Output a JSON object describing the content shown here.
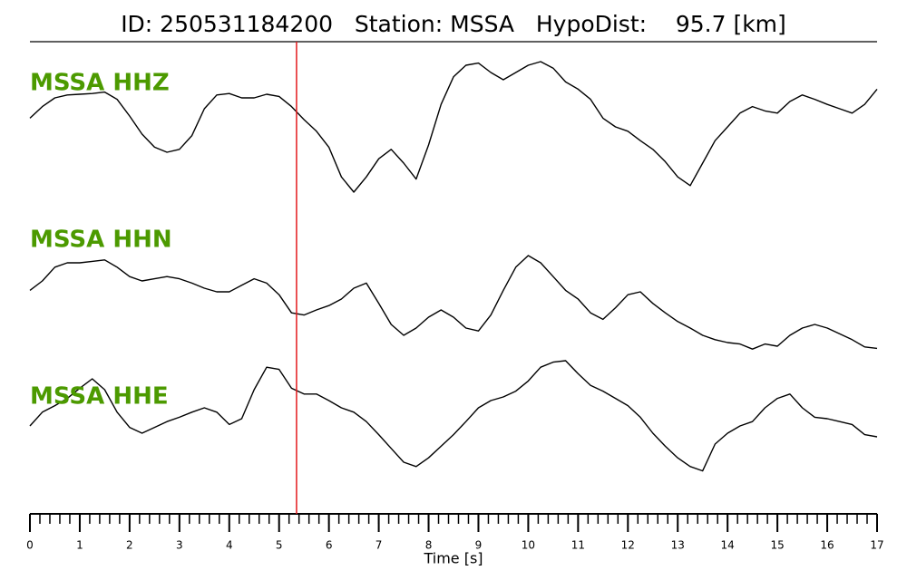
{
  "chart_data": {
    "type": "line",
    "title": "ID: 250531184200   Station: MSSA   HypoDist:    95.7 [km]",
    "xlabel": "Time [s]",
    "xlim": [
      0,
      17
    ],
    "xticks": [
      0,
      1,
      2,
      3,
      4,
      5,
      6,
      7,
      8,
      9,
      10,
      11,
      12,
      13,
      14,
      15,
      16,
      17
    ],
    "xminor": 0.2,
    "ylim": [
      -1,
      1
    ],
    "marker_x": 5.35,
    "marker_color": "#e41a1c",
    "label_color": "#4c9a00",
    "x": [
      0,
      0.25,
      0.5,
      0.75,
      1,
      1.25,
      1.5,
      1.75,
      2,
      2.25,
      2.5,
      2.75,
      3,
      3.25,
      3.5,
      3.75,
      4,
      4.25,
      4.5,
      4.75,
      5,
      5.25,
      5.5,
      5.75,
      6,
      6.25,
      6.5,
      6.75,
      7,
      7.25,
      7.5,
      7.75,
      8,
      8.25,
      8.5,
      8.75,
      9,
      9.25,
      9.5,
      9.75,
      10,
      10.25,
      10.5,
      10.75,
      11,
      11.25,
      11.5,
      11.75,
      12,
      12.25,
      12.5,
      12.75,
      13,
      13.25,
      13.5,
      13.75,
      14,
      14.25,
      14.5,
      14.75,
      15,
      15.25,
      15.5,
      15.75,
      16,
      16.25,
      16.5,
      16.75,
      17
    ],
    "series": [
      {
        "name": "MSSA HHZ",
        "color": "#000000",
        "values": [
          0.12,
          0.28,
          0.4,
          0.44,
          0.45,
          0.46,
          0.48,
          0.38,
          0.15,
          -0.1,
          -0.28,
          -0.35,
          -0.31,
          -0.12,
          0.25,
          0.44,
          0.46,
          0.4,
          0.4,
          0.45,
          0.42,
          0.28,
          0.1,
          -0.06,
          -0.28,
          -0.69,
          -0.9,
          -0.69,
          -0.44,
          -0.31,
          -0.5,
          -0.72,
          -0.25,
          0.31,
          0.69,
          0.85,
          0.88,
          0.75,
          0.65,
          0.75,
          0.85,
          0.9,
          0.81,
          0.62,
          0.52,
          0.38,
          0.12,
          0,
          -0.06,
          -0.19,
          -0.31,
          -0.48,
          -0.69,
          -0.81,
          -0.5,
          -0.19,
          0,
          0.19,
          0.28,
          0.22,
          0.19,
          0.35,
          0.44,
          0.38,
          0.31,
          0.25,
          0.19,
          0.31,
          0.52
        ]
      },
      {
        "name": "MSSA HHN",
        "color": "#000000",
        "values": [
          0.12,
          0.25,
          0.44,
          0.5,
          0.5,
          0.52,
          0.54,
          0.44,
          0.31,
          0.25,
          0.28,
          0.31,
          0.28,
          0.22,
          0.15,
          0.1,
          0.1,
          0.19,
          0.28,
          0.22,
          0.06,
          -0.19,
          -0.22,
          -0.15,
          -0.09,
          0,
          0.15,
          0.22,
          -0.06,
          -0.35,
          -0.5,
          -0.4,
          -0.25,
          -0.15,
          -0.25,
          -0.4,
          -0.44,
          -0.22,
          0.12,
          0.44,
          0.6,
          0.5,
          0.31,
          0.12,
          0,
          -0.19,
          -0.28,
          -0.12,
          0.06,
          0.1,
          -0.06,
          -0.19,
          -0.31,
          -0.4,
          -0.5,
          -0.56,
          -0.6,
          -0.62,
          -0.69,
          -0.62,
          -0.65,
          -0.5,
          -0.4,
          -0.35,
          -0.4,
          -0.48,
          -0.56,
          -0.66,
          -0.68
        ]
      },
      {
        "name": "MSSA HHE",
        "color": "#000000",
        "values": [
          0,
          0.19,
          0.28,
          0.38,
          0.52,
          0.65,
          0.5,
          0.19,
          -0.02,
          -0.1,
          -0.02,
          0.06,
          0.12,
          0.19,
          0.25,
          0.19,
          0.02,
          0.1,
          0.5,
          0.81,
          0.78,
          0.52,
          0.44,
          0.44,
          0.35,
          0.25,
          0.19,
          0.06,
          -0.12,
          -0.31,
          -0.5,
          -0.56,
          -0.44,
          -0.28,
          -0.12,
          0.06,
          0.25,
          0.35,
          0.4,
          0.48,
          0.62,
          0.81,
          0.88,
          0.9,
          0.72,
          0.56,
          0.48,
          0.38,
          0.28,
          0.12,
          -0.1,
          -0.28,
          -0.44,
          -0.56,
          -0.62,
          -0.25,
          -0.1,
          0,
          0.06,
          0.25,
          0.38,
          0.44,
          0.25,
          0.12,
          0.1,
          0.06,
          0.02,
          -0.12,
          -0.15
        ]
      }
    ]
  }
}
